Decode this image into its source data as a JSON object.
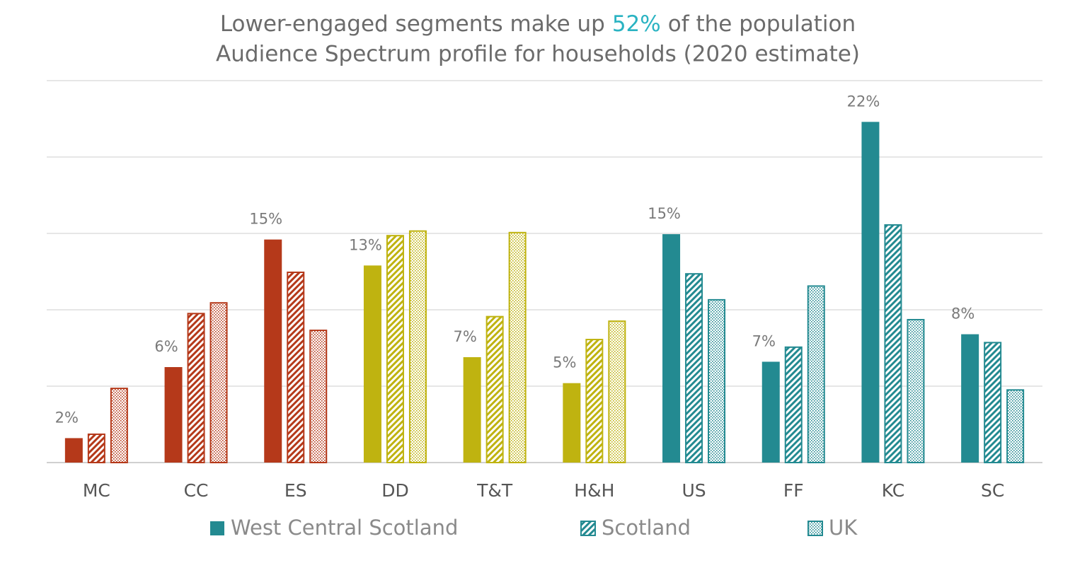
{
  "chart_data": {
    "type": "bar",
    "title": {
      "prefix": "Lower-engaged segments make up",
      "highlight": "52%",
      "suffix": "of the population"
    },
    "title_highlight_color": "#2ab3c2",
    "subtitle": "Audience Spectrum profile for households (2020 estimate)",
    "categories": [
      "MC",
      "CC",
      "ES",
      "DD",
      "T&T",
      "H&H",
      "US",
      "FF",
      "KC",
      "SC"
    ],
    "category_colors": [
      "#b5391a",
      "#b5391a",
      "#b5391a",
      "#bfb310",
      "#bfb310",
      "#bfb310",
      "#238a91",
      "#238a91",
      "#238a91",
      "#238a91"
    ],
    "series": [
      {
        "name": "West Central Scotland",
        "color": "#238a91",
        "pattern": "solid",
        "values": [
          1.6,
          6.25,
          14.6,
          12.9,
          6.9,
          5.2,
          14.95,
          6.6,
          22.3,
          8.4
        ],
        "value_labels": [
          "2%",
          "6%",
          "15%",
          "13%",
          "7%",
          "5%",
          "15%",
          "7%",
          "22%",
          "8%"
        ]
      },
      {
        "name": "Scotland",
        "color": "#238a91",
        "pattern": "diagonal",
        "values": [
          1.9,
          9.8,
          12.5,
          14.9,
          9.6,
          8.1,
          12.4,
          7.6,
          15.6,
          7.9
        ]
      },
      {
        "name": "UK",
        "color": "#238a91",
        "pattern": "dots",
        "values": [
          4.9,
          10.5,
          8.7,
          15.2,
          15.1,
          9.3,
          10.7,
          11.6,
          9.4,
          4.8
        ]
      }
    ],
    "ylim": [
      0,
      25
    ],
    "yticks": [
      0,
      5,
      10,
      15,
      20,
      25
    ],
    "grid": true
  }
}
